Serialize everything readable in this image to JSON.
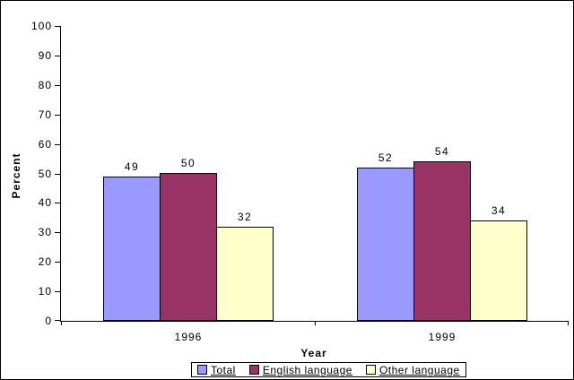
{
  "chart_data": {
    "type": "bar",
    "title": "",
    "xlabel": "Year",
    "ylabel": "Percent",
    "categories": [
      "1996",
      "1999"
    ],
    "series": [
      {
        "name": "Total",
        "color": "#9999FF",
        "values": [
          49,
          52
        ]
      },
      {
        "name": "English language",
        "color": "#993366",
        "values": [
          50,
          54
        ]
      },
      {
        "name": "Other language",
        "color": "#FFFFCC",
        "values": [
          32,
          34
        ]
      }
    ],
    "ylim": [
      0,
      100
    ],
    "ytick_step": 10,
    "grid": false,
    "value_labels_shown": true,
    "legend_position": "bottom"
  },
  "colors": {
    "axis": "#000000",
    "background": "#FFFFFF",
    "text": "#000000"
  }
}
